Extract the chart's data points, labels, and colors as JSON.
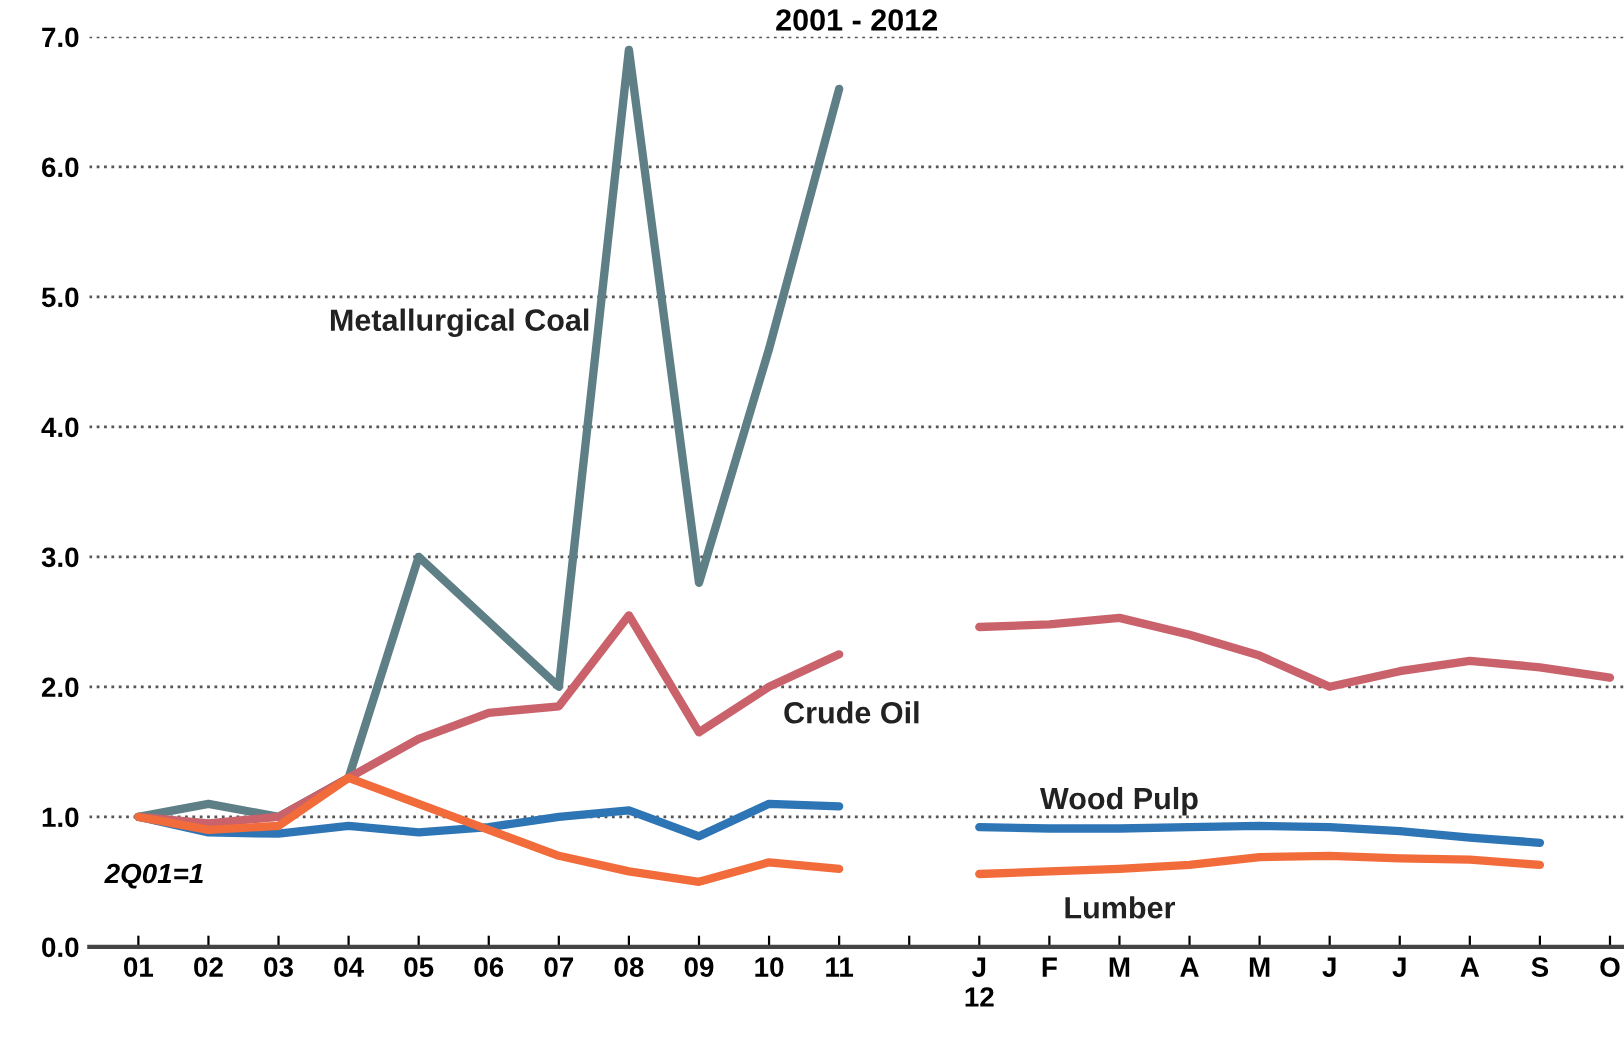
{
  "chart_data": {
    "type": "line",
    "title": "2001 - 2012",
    "categories": [
      "01",
      "02",
      "03",
      "04",
      "05",
      "06",
      "07",
      "08",
      "09",
      "10",
      "11",
      null,
      "J\n12",
      "F",
      "M",
      "A",
      "M",
      "J",
      "J",
      "A",
      "S",
      "O"
    ],
    "series": [
      {
        "name": "Metallurgical Coal",
        "color": "#5f7f86",
        "values": [
          1.0,
          1.1,
          1.0,
          1.3,
          3.0,
          2.5,
          2.0,
          6.9,
          2.8,
          4.6,
          6.6,
          null,
          null,
          null,
          null,
          null,
          null,
          null,
          null,
          null,
          null,
          null
        ]
      },
      {
        "name": "Crude Oil",
        "color": "#c9626a",
        "values": [
          1.0,
          0.95,
          1.0,
          1.3,
          1.6,
          1.8,
          1.85,
          2.55,
          1.65,
          2.0,
          2.25,
          null,
          2.46,
          2.48,
          2.53,
          2.4,
          2.24,
          2.0,
          2.12,
          2.2,
          2.15,
          2.07
        ]
      },
      {
        "name": "Wood Pulp",
        "color": "#2e75b6",
        "values": [
          1.0,
          0.88,
          0.87,
          0.93,
          0.88,
          0.92,
          1.0,
          1.05,
          0.85,
          1.1,
          1.08,
          null,
          0.92,
          0.91,
          0.91,
          0.92,
          0.93,
          0.92,
          0.89,
          0.84,
          0.8,
          null
        ]
      },
      {
        "name": "Lumber",
        "color": "#f26b3a",
        "values": [
          1.0,
          0.9,
          0.93,
          1.3,
          1.1,
          0.9,
          0.7,
          0.58,
          0.5,
          0.65,
          0.6,
          null,
          0.56,
          0.58,
          0.6,
          0.63,
          0.69,
          0.7,
          0.68,
          0.67,
          0.63,
          null
        ]
      }
    ],
    "ylim": [
      0,
      7
    ],
    "yticks": [
      {
        "value": 0,
        "label": "0.0"
      },
      {
        "value": 1,
        "label": "1.0"
      },
      {
        "value": 2,
        "label": "2.0"
      },
      {
        "value": 3,
        "label": "3.0"
      },
      {
        "value": 4,
        "label": "4.0"
      },
      {
        "value": 5,
        "label": "5.0"
      },
      {
        "value": 6,
        "label": "6.0"
      },
      {
        "value": 7,
        "label": "7.0"
      }
    ],
    "grid": "y",
    "marker": "none",
    "line_style": "solid",
    "annotations": [
      "2Q01=1"
    ]
  }
}
